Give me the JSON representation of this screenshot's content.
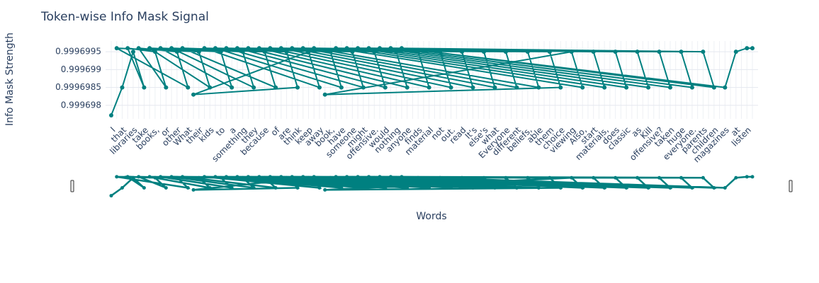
{
  "chart_data": {
    "type": "line",
    "title": "Token-wise Info Mask Signal",
    "x_label": "Words",
    "y_label": "Info Mask Strength",
    "categories": [
      "I",
      null,
      "that",
      null,
      "libraries",
      null,
      "take",
      null,
      "books,",
      null,
      "or",
      null,
      "other",
      null,
      "What",
      null,
      "their",
      null,
      "kids",
      null,
      "to",
      null,
      "a",
      null,
      "something",
      null,
      "they",
      null,
      "because",
      null,
      "of",
      null,
      "are",
      null,
      "think",
      null,
      "keep",
      null,
      "away",
      null,
      "book,",
      null,
      "have",
      null,
      "someone",
      null,
      "might",
      null,
      "offensive.",
      null,
      "would",
      null,
      "nothing",
      null,
      "anyone",
      null,
      "finds",
      null,
      "material",
      null,
      "not",
      null,
      "out.",
      null,
      "read",
      null,
      "It's",
      null,
      "else's",
      null,
      "what",
      null,
      "Everyone",
      null,
      "different",
      null,
      "beliefs,",
      null,
      "able",
      null,
      "them",
      null,
      "choice",
      null,
      "viewing",
      null,
      "Also,",
      null,
      "start",
      null,
      "materials,",
      null,
      "does",
      null,
      "classic",
      null,
      "as",
      null,
      "Kill",
      null,
      "offensive?",
      null,
      "taken",
      null,
      "huge",
      null,
      "everyone.",
      null,
      "parents",
      null,
      "children",
      null,
      "magazines",
      null,
      "at",
      null,
      "listen",
      null
    ],
    "series": [
      {
        "color": "#008080",
        "x": [
          0,
          2,
          4,
          6,
          3,
          8,
          10,
          5,
          12,
          14,
          1,
          16,
          18,
          7,
          20,
          22,
          9,
          24,
          26,
          11,
          28,
          30,
          13,
          32,
          34,
          15,
          36,
          38,
          17,
          40,
          42,
          19,
          44,
          46,
          21,
          48,
          50,
          23,
          52,
          54,
          25,
          56,
          58,
          27,
          60,
          62,
          29,
          64,
          66,
          31,
          68,
          70,
          33,
          72,
          74,
          35,
          76,
          78,
          37,
          80,
          82,
          39,
          84,
          86,
          41,
          88,
          90,
          43,
          92,
          94,
          45,
          96,
          98,
          47,
          100,
          102,
          49,
          104,
          106,
          51,
          108,
          110,
          53,
          112,
          114,
          116,
          117
        ],
        "values": [
          0.99969772,
          0.9996985,
          0.9996995,
          0.9996985,
          0.9996996,
          0.9996995,
          0.9996985,
          0.9996996,
          0.9996995,
          0.9996985,
          0.9996996,
          0.9996995,
          0.9996985,
          0.9996996,
          0.9996995,
          0.9996985,
          0.9996996,
          0.9996995,
          0.9996985,
          0.9996996,
          0.9996995,
          0.9996985,
          0.9996996,
          0.9996995,
          0.9996985,
          0.9996983,
          0.9996995,
          0.9996985,
          0.9996996,
          0.9996995,
          0.9996985,
          0.9996996,
          0.9996995,
          0.9996985,
          0.9996996,
          0.9996995,
          0.9996985,
          0.9996996,
          0.9996995,
          0.9996985,
          0.9996996,
          0.9996995,
          0.9996985,
          0.9996996,
          0.9996995,
          0.9996985,
          0.9996996,
          0.9996995,
          0.9996985,
          0.9996996,
          0.9996995,
          0.9996985,
          0.9996996,
          0.9996995,
          0.9996985,
          0.9996996,
          0.9996995,
          0.9996985,
          0.9996996,
          0.9996995,
          0.9996985,
          0.9996983,
          0.9996995,
          0.9996985,
          0.9996996,
          0.9996995,
          0.9996985,
          0.9996996,
          0.9996995,
          0.9996985,
          0.9996996,
          0.9996995,
          0.9996985,
          0.9996996,
          0.9996995,
          0.9996985,
          0.9996996,
          0.9996995,
          0.9996985,
          0.9996996,
          0.9996995,
          0.9996985,
          0.9996996,
          0.9996985,
          0.9996995,
          0.9996996,
          0.9996996
        ]
      }
    ],
    "ylim": [
      0.99969762,
      0.9996998
    ],
    "yticks": [
      0.999698,
      0.9996985,
      0.999699,
      0.9996995
    ],
    "grid": true,
    "range_slider": true
  }
}
